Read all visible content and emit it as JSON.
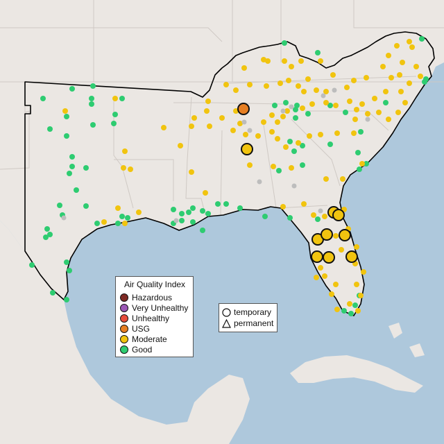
{
  "legend": {
    "title": "Air Quality Index",
    "categories": [
      {
        "label": "Hazardous",
        "color": "#7e2a24"
      },
      {
        "label": "Very Unhealthy",
        "color": "#9b59b6"
      },
      {
        "label": "Unhealthy",
        "color": "#e74c3c"
      },
      {
        "label": "USG",
        "color": "#e67e22"
      },
      {
        "label": "Moderate",
        "color": "#f1c40f"
      },
      {
        "label": "Good",
        "color": "#2ecc71"
      }
    ]
  },
  "monitor_types": {
    "temporary": "temporary",
    "permanent": "permanent"
  },
  "colors": {
    "land": "#ebe7e3",
    "water": "#aec8dc",
    "border": "#cfc9c4",
    "region_outline": "#000000",
    "no_data": "#bdbdbd"
  }
}
